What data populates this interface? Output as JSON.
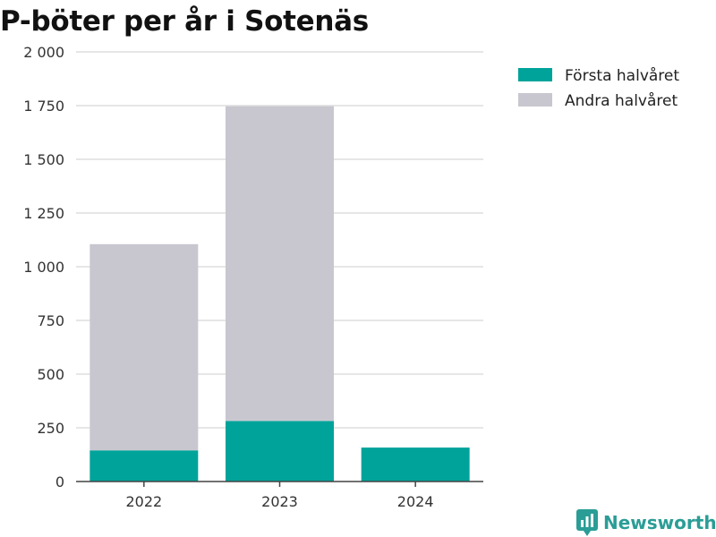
{
  "chart_data": {
    "type": "bar",
    "stacked": true,
    "title": "P-böter per år i Sotenäs",
    "xlabel": "",
    "ylabel": "",
    "categories": [
      "2022",
      "2023",
      "2024"
    ],
    "series": [
      {
        "name": "Första halvåret",
        "color": "#00a39a",
        "values": [
          145,
          282,
          158
        ]
      },
      {
        "name": "Andra halvåret",
        "color": "#c8c7d0",
        "values": [
          960,
          1465,
          0
        ]
      }
    ],
    "ylim": [
      0,
      2000
    ],
    "yticks": [
      0,
      250,
      500,
      750,
      1000,
      1250,
      1500,
      1750,
      2000
    ],
    "ytick_labels": [
      "0",
      "250",
      "500",
      "750",
      "1 000",
      "1 250",
      "1 500",
      "1 750",
      "2 000"
    ],
    "grid": true,
    "legend_position": "top-right"
  },
  "brand": {
    "name": "Newsworthy",
    "icon": "newsworthy-logo-icon",
    "color": "#2a9d96"
  }
}
